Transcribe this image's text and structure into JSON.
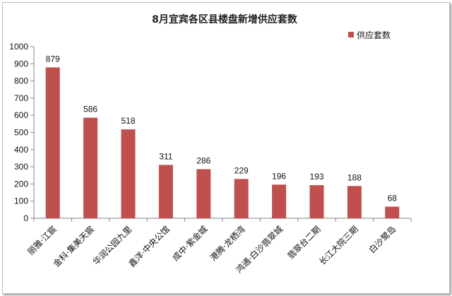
{
  "chart_data": {
    "type": "bar",
    "title": "8月宜宾各区县楼盘新增供应套数",
    "xlabel": "",
    "ylabel": "",
    "ylim": [
      0,
      1000
    ],
    "yticks": [
      0,
      100,
      200,
      300,
      400,
      500,
      600,
      700,
      800,
      900,
      1000
    ],
    "grid": false,
    "legend_position": "top-right",
    "bar_color": "#C0504D",
    "categories": [
      "丽雅·江宸",
      "金科·集美天宸",
      "华润公园九里",
      "鑫洋·中央公馆",
      "成中·紫金城",
      "港腾·龙栖湾",
      "鸿通·白沙翡翠城",
      "翡翠台二期",
      "长江大院三期",
      "白沙鹭岛"
    ],
    "series": [
      {
        "name": "供应套数",
        "values": [
          879,
          586,
          518,
          311,
          286,
          229,
          196,
          193,
          188,
          68
        ]
      }
    ]
  }
}
